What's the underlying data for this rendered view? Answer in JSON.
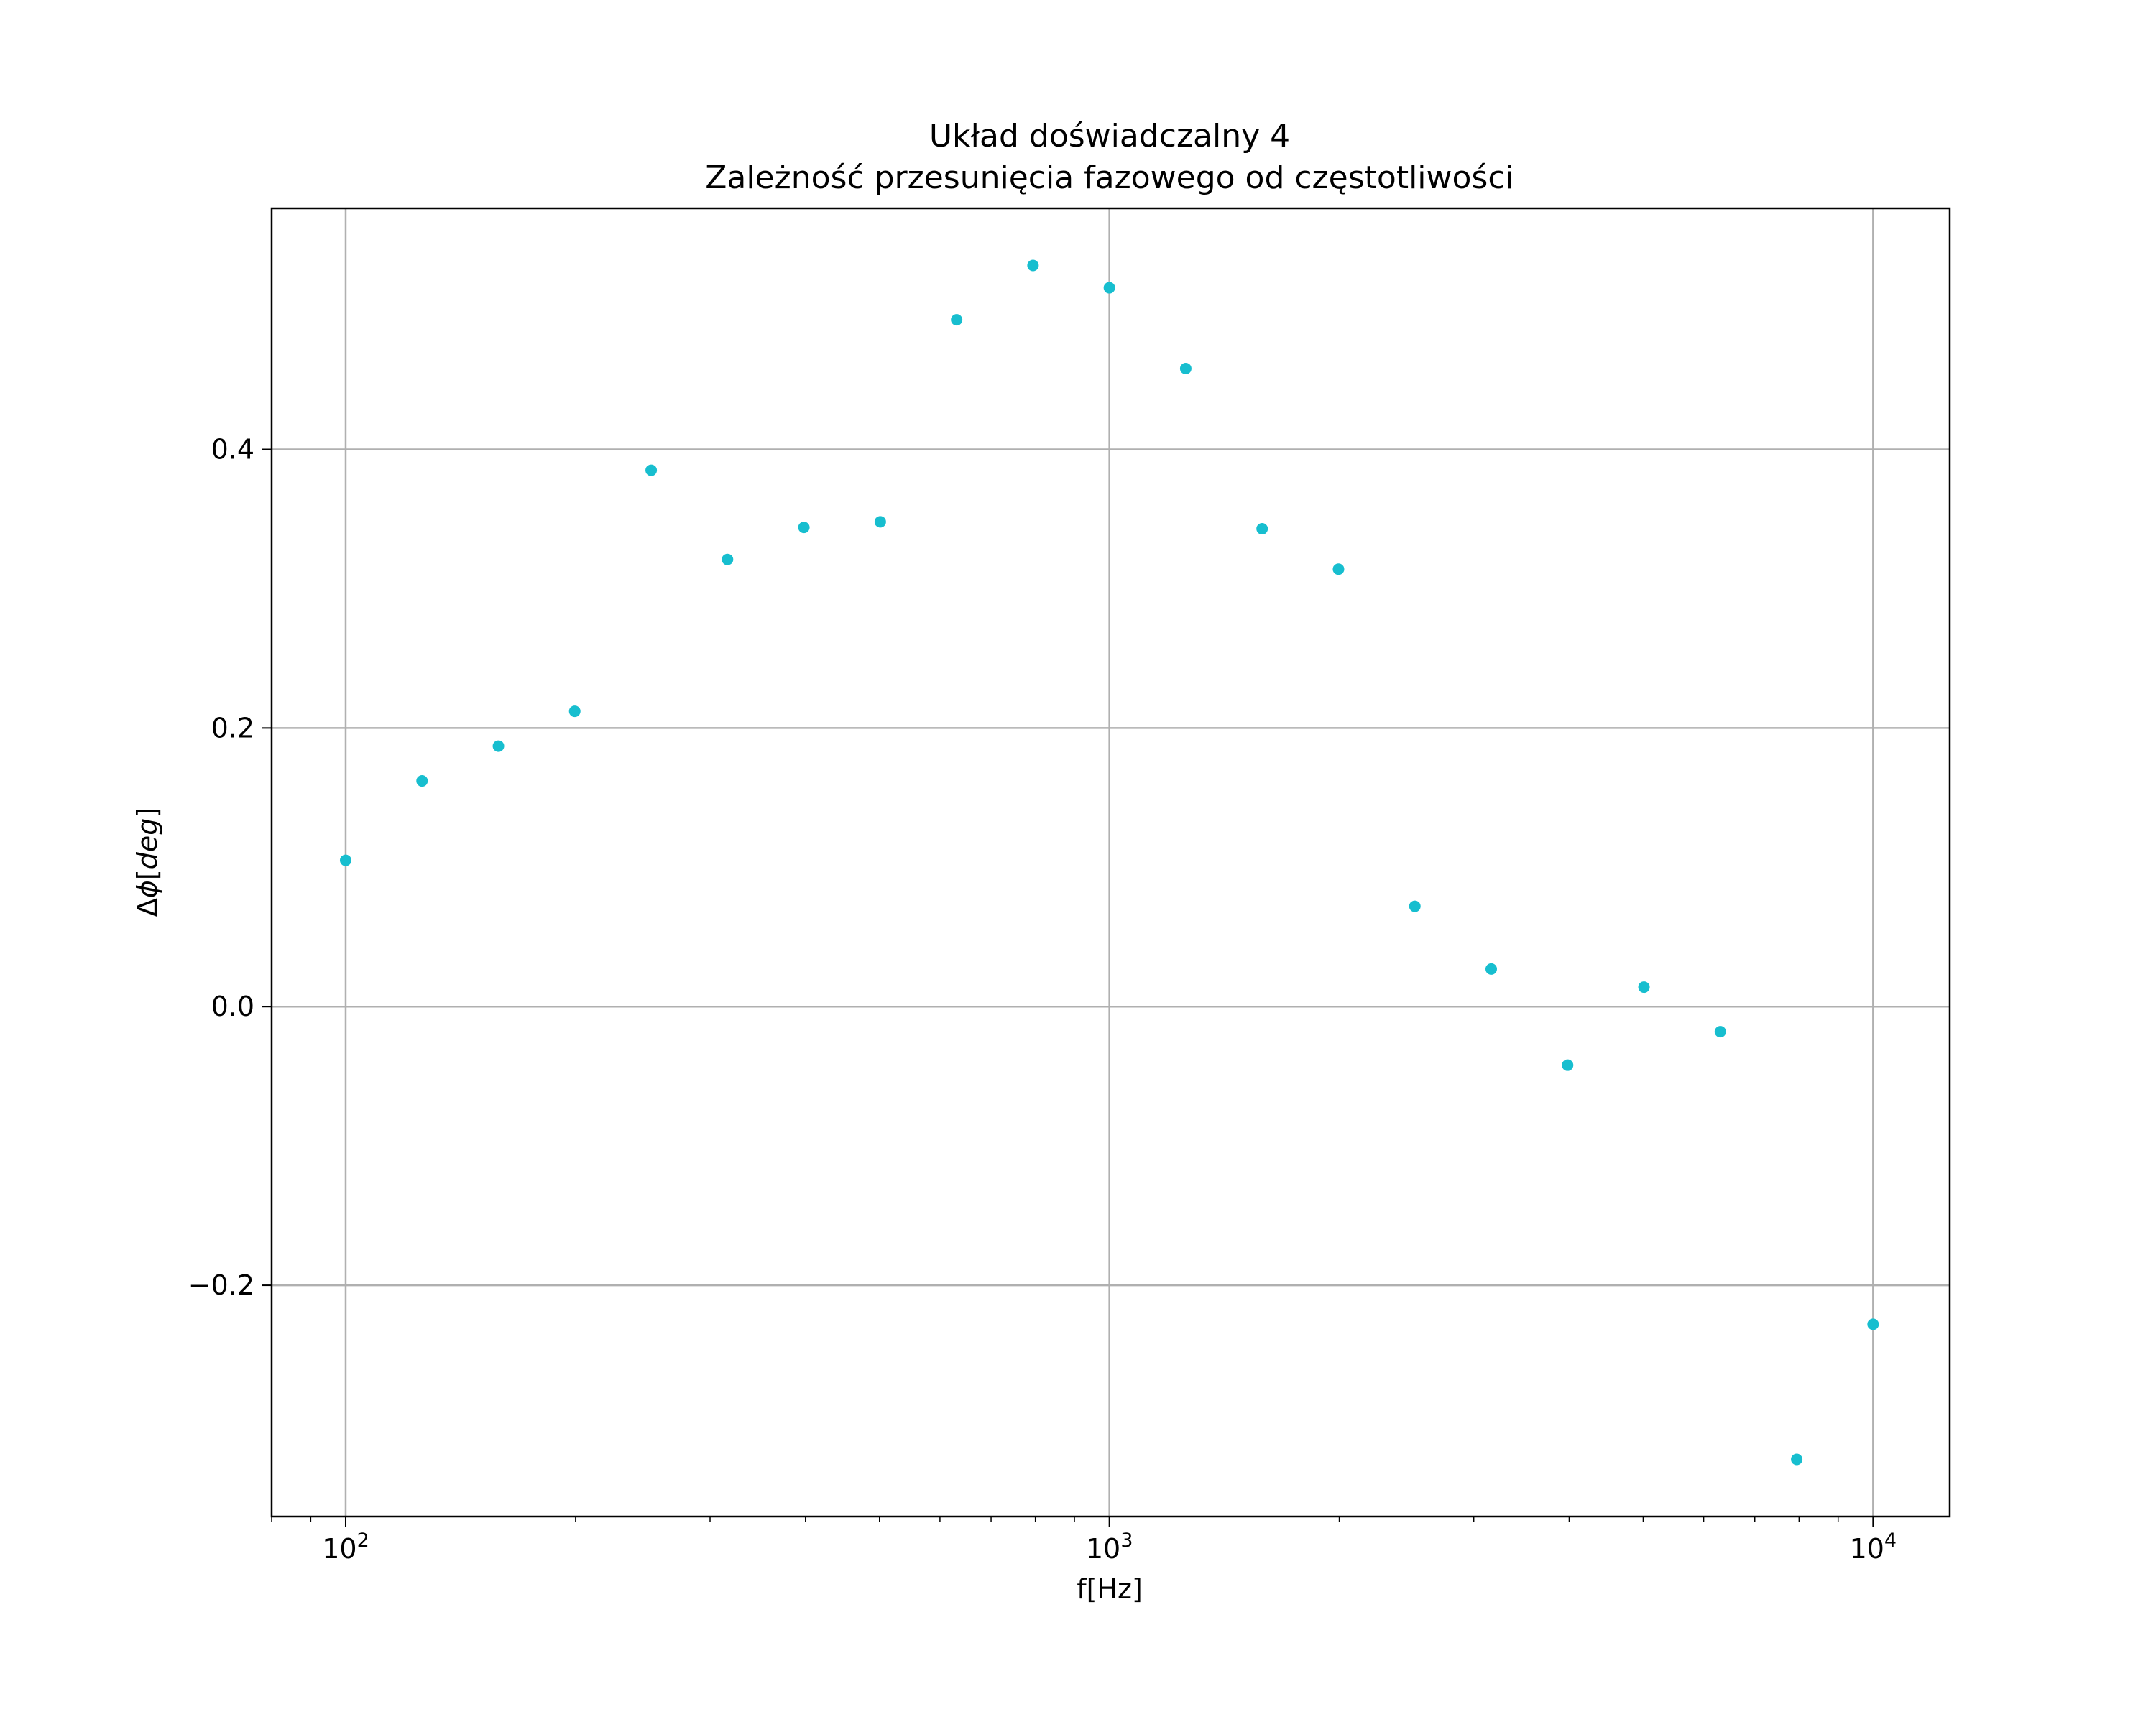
{
  "chart_data": {
    "type": "scatter",
    "title": "Układ doświadczalny 4",
    "subtitle": "Zależność przesunięcia fazowego od częstotliwości",
    "xlabel": "f[Hz]",
    "ylabel": "Δϕ[deg]",
    "ylabel_parts": {
      "prefix": "Δ",
      "phi": "ϕ",
      "open": "[",
      "unit": "deg",
      "close": "]"
    },
    "xscale": "log",
    "xlim": [
      80,
      12600
    ],
    "ylim": [
      -0.366,
      0.573
    ],
    "x_ticks": [
      {
        "value": 100,
        "base": "10",
        "exp": "2"
      },
      {
        "value": 1000,
        "base": "10",
        "exp": "3"
      },
      {
        "value": 10000,
        "base": "10",
        "exp": "4"
      }
    ],
    "y_ticks": [
      {
        "value": -0.2,
        "label": "−0.2"
      },
      {
        "value": 0.0,
        "label": "0.0"
      },
      {
        "value": 0.2,
        "label": "0.2"
      },
      {
        "value": 0.4,
        "label": "0.4"
      }
    ],
    "grid": true,
    "marker_color": "#17becf",
    "series": [
      {
        "x": [
          100,
          125.9,
          158.5,
          199.5,
          251.2,
          316.2,
          398.1,
          501.2,
          631.0,
          794.3,
          1000,
          1258.9,
          1584.9,
          1995.3,
          2511.9,
          3162.3,
          3981.1,
          5011.9,
          6309.6,
          7943.3,
          10000
        ],
        "y": [
          0.105,
          0.162,
          0.187,
          0.212,
          0.385,
          0.321,
          0.344,
          0.348,
          0.493,
          0.532,
          0.516,
          0.458,
          0.343,
          0.314,
          0.072,
          0.027,
          -0.042,
          0.014,
          -0.018,
          -0.325,
          -0.228
        ]
      }
    ]
  }
}
